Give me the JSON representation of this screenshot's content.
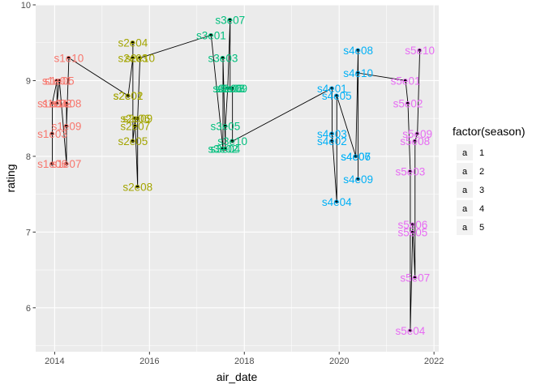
{
  "chart_data": {
    "type": "scatter",
    "title": "",
    "xlabel": "air_date",
    "ylabel": "rating",
    "xlim": [
      2013.6,
      2022.1
    ],
    "ylim": [
      5.42,
      10.0
    ],
    "x_ticks": [
      2014,
      2016,
      2018,
      2020,
      2022
    ],
    "x_tick_labels": [
      "2014",
      "2016",
      "2018",
      "2020",
      "2022"
    ],
    "y_ticks": [
      6,
      7,
      8,
      9,
      10
    ],
    "y_tick_labels": [
      "6",
      "7",
      "8",
      "9",
      "10"
    ],
    "grid": true,
    "connected_line": true,
    "legend": {
      "title": "factor(season)",
      "position": "right",
      "entries": [
        {
          "key": "a",
          "label": "1",
          "color": "#F8766D"
        },
        {
          "key": "a",
          "label": "2",
          "color": "#A3A500"
        },
        {
          "key": "a",
          "label": "3",
          "color": "#00BF7D"
        },
        {
          "key": "a",
          "label": "4",
          "color": "#00B0F6"
        },
        {
          "key": "a",
          "label": "5",
          "color": "#E76BF3"
        }
      ]
    },
    "series": [
      {
        "name": "1",
        "color": "#F8766D",
        "points": [
          {
            "label": "s1e01",
            "x": 2014.05,
            "y": 9.0
          },
          {
            "label": "s1e02",
            "x": 2014.05,
            "y": 8.7
          },
          {
            "label": "s1e03",
            "x": 2013.95,
            "y": 8.3
          },
          {
            "label": "s1e04",
            "x": 2013.95,
            "y": 8.7
          },
          {
            "label": "s1e05",
            "x": 2014.1,
            "y": 9.0
          },
          {
            "label": "s1e06",
            "x": 2013.95,
            "y": 7.9
          },
          {
            "label": "s1e07",
            "x": 2014.25,
            "y": 7.9
          },
          {
            "label": "s1e08",
            "x": 2014.25,
            "y": 8.7
          },
          {
            "label": "s1e09",
            "x": 2014.25,
            "y": 8.4
          },
          {
            "label": "s1e10",
            "x": 2014.3,
            "y": 9.3
          }
        ]
      },
      {
        "name": "2",
        "color": "#A3A500",
        "points": [
          {
            "label": "s2e01",
            "x": 2015.55,
            "y": 8.8
          },
          {
            "label": "s2e02",
            "x": 2015.55,
            "y": 8.8
          },
          {
            "label": "s2e03",
            "x": 2015.65,
            "y": 9.3
          },
          {
            "label": "s2e04",
            "x": 2015.65,
            "y": 9.5
          },
          {
            "label": "s2e05",
            "x": 2015.65,
            "y": 8.2
          },
          {
            "label": "s2e06",
            "x": 2015.7,
            "y": 8.5
          },
          {
            "label": "s2e07",
            "x": 2015.7,
            "y": 8.4
          },
          {
            "label": "s2e08",
            "x": 2015.75,
            "y": 7.6
          },
          {
            "label": "s2e09",
            "x": 2015.75,
            "y": 8.5
          },
          {
            "label": "s2e10",
            "x": 2015.8,
            "y": 9.3
          }
        ]
      },
      {
        "name": "3",
        "color": "#00BF7D",
        "points": [
          {
            "label": "s3e01",
            "x": 2017.3,
            "y": 9.6
          },
          {
            "label": "s3e02",
            "x": 2017.55,
            "y": 8.1
          },
          {
            "label": "s3e03",
            "x": 2017.55,
            "y": 9.3
          },
          {
            "label": "s3e04",
            "x": 2017.6,
            "y": 8.1
          },
          {
            "label": "s3e05",
            "x": 2017.6,
            "y": 8.4
          },
          {
            "label": "s3e06",
            "x": 2017.65,
            "y": 8.9
          },
          {
            "label": "s3e07",
            "x": 2017.7,
            "y": 9.8
          },
          {
            "label": "s3e08",
            "x": 2017.7,
            "y": 8.9
          },
          {
            "label": "s3e09",
            "x": 2017.75,
            "y": 8.9
          },
          {
            "label": "s3e10",
            "x": 2017.75,
            "y": 8.2
          }
        ]
      },
      {
        "name": "4",
        "color": "#00B0F6",
        "points": [
          {
            "label": "s4e01",
            "x": 2019.85,
            "y": 8.9
          },
          {
            "label": "s4e02",
            "x": 2019.85,
            "y": 8.2
          },
          {
            "label": "s4e03",
            "x": 2019.85,
            "y": 8.3
          },
          {
            "label": "s4e04",
            "x": 2019.95,
            "y": 7.4
          },
          {
            "label": "s4e05",
            "x": 2019.95,
            "y": 8.8
          },
          {
            "label": "s4e06",
            "x": 2020.35,
            "y": 8.0
          },
          {
            "label": "s4e07",
            "x": 2020.35,
            "y": 8.0
          },
          {
            "label": "s4e08",
            "x": 2020.4,
            "y": 9.4
          },
          {
            "label": "s4e09",
            "x": 2020.4,
            "y": 7.7
          },
          {
            "label": "s4e10",
            "x": 2020.4,
            "y": 9.1
          }
        ]
      },
      {
        "name": "5",
        "color": "#E76BF3",
        "points": [
          {
            "label": "s5e01",
            "x": 2021.4,
            "y": 9.0
          },
          {
            "label": "s5e02",
            "x": 2021.45,
            "y": 8.7
          },
          {
            "label": "s5e03",
            "x": 2021.5,
            "y": 7.8
          },
          {
            "label": "s5e04",
            "x": 2021.5,
            "y": 5.7
          },
          {
            "label": "s5e05",
            "x": 2021.55,
            "y": 7.0
          },
          {
            "label": "s5e06",
            "x": 2021.55,
            "y": 7.1
          },
          {
            "label": "s5e07",
            "x": 2021.6,
            "y": 6.4
          },
          {
            "label": "s5e08",
            "x": 2021.6,
            "y": 8.2
          },
          {
            "label": "s5e09",
            "x": 2021.65,
            "y": 8.3
          },
          {
            "label": "s5e10",
            "x": 2021.7,
            "y": 9.4
          }
        ]
      }
    ],
    "line_order": [
      "s1e06",
      "s1e03",
      "s1e04",
      "s1e01",
      "s1e02",
      "s1e05",
      "s1e07",
      "s1e08",
      "s1e09",
      "s1e10",
      "s2e01",
      "s2e02",
      "s2e03",
      "s2e04",
      "s2e05",
      "s2e06",
      "s2e07",
      "s2e08",
      "s2e09",
      "s2e10",
      "s3e01",
      "s3e02",
      "s3e03",
      "s3e04",
      "s3e05",
      "s3e06",
      "s3e07",
      "s3e08",
      "s3e09",
      "s3e10",
      "s4e01",
      "s4e02",
      "s4e03",
      "s4e04",
      "s4e05",
      "s4e06",
      "s4e07",
      "s4e08",
      "s4e09",
      "s4e10",
      "s5e01",
      "s5e02",
      "s5e03",
      "s5e04",
      "s5e05",
      "s5e06",
      "s5e07",
      "s5e08",
      "s5e09",
      "s5e10"
    ]
  }
}
